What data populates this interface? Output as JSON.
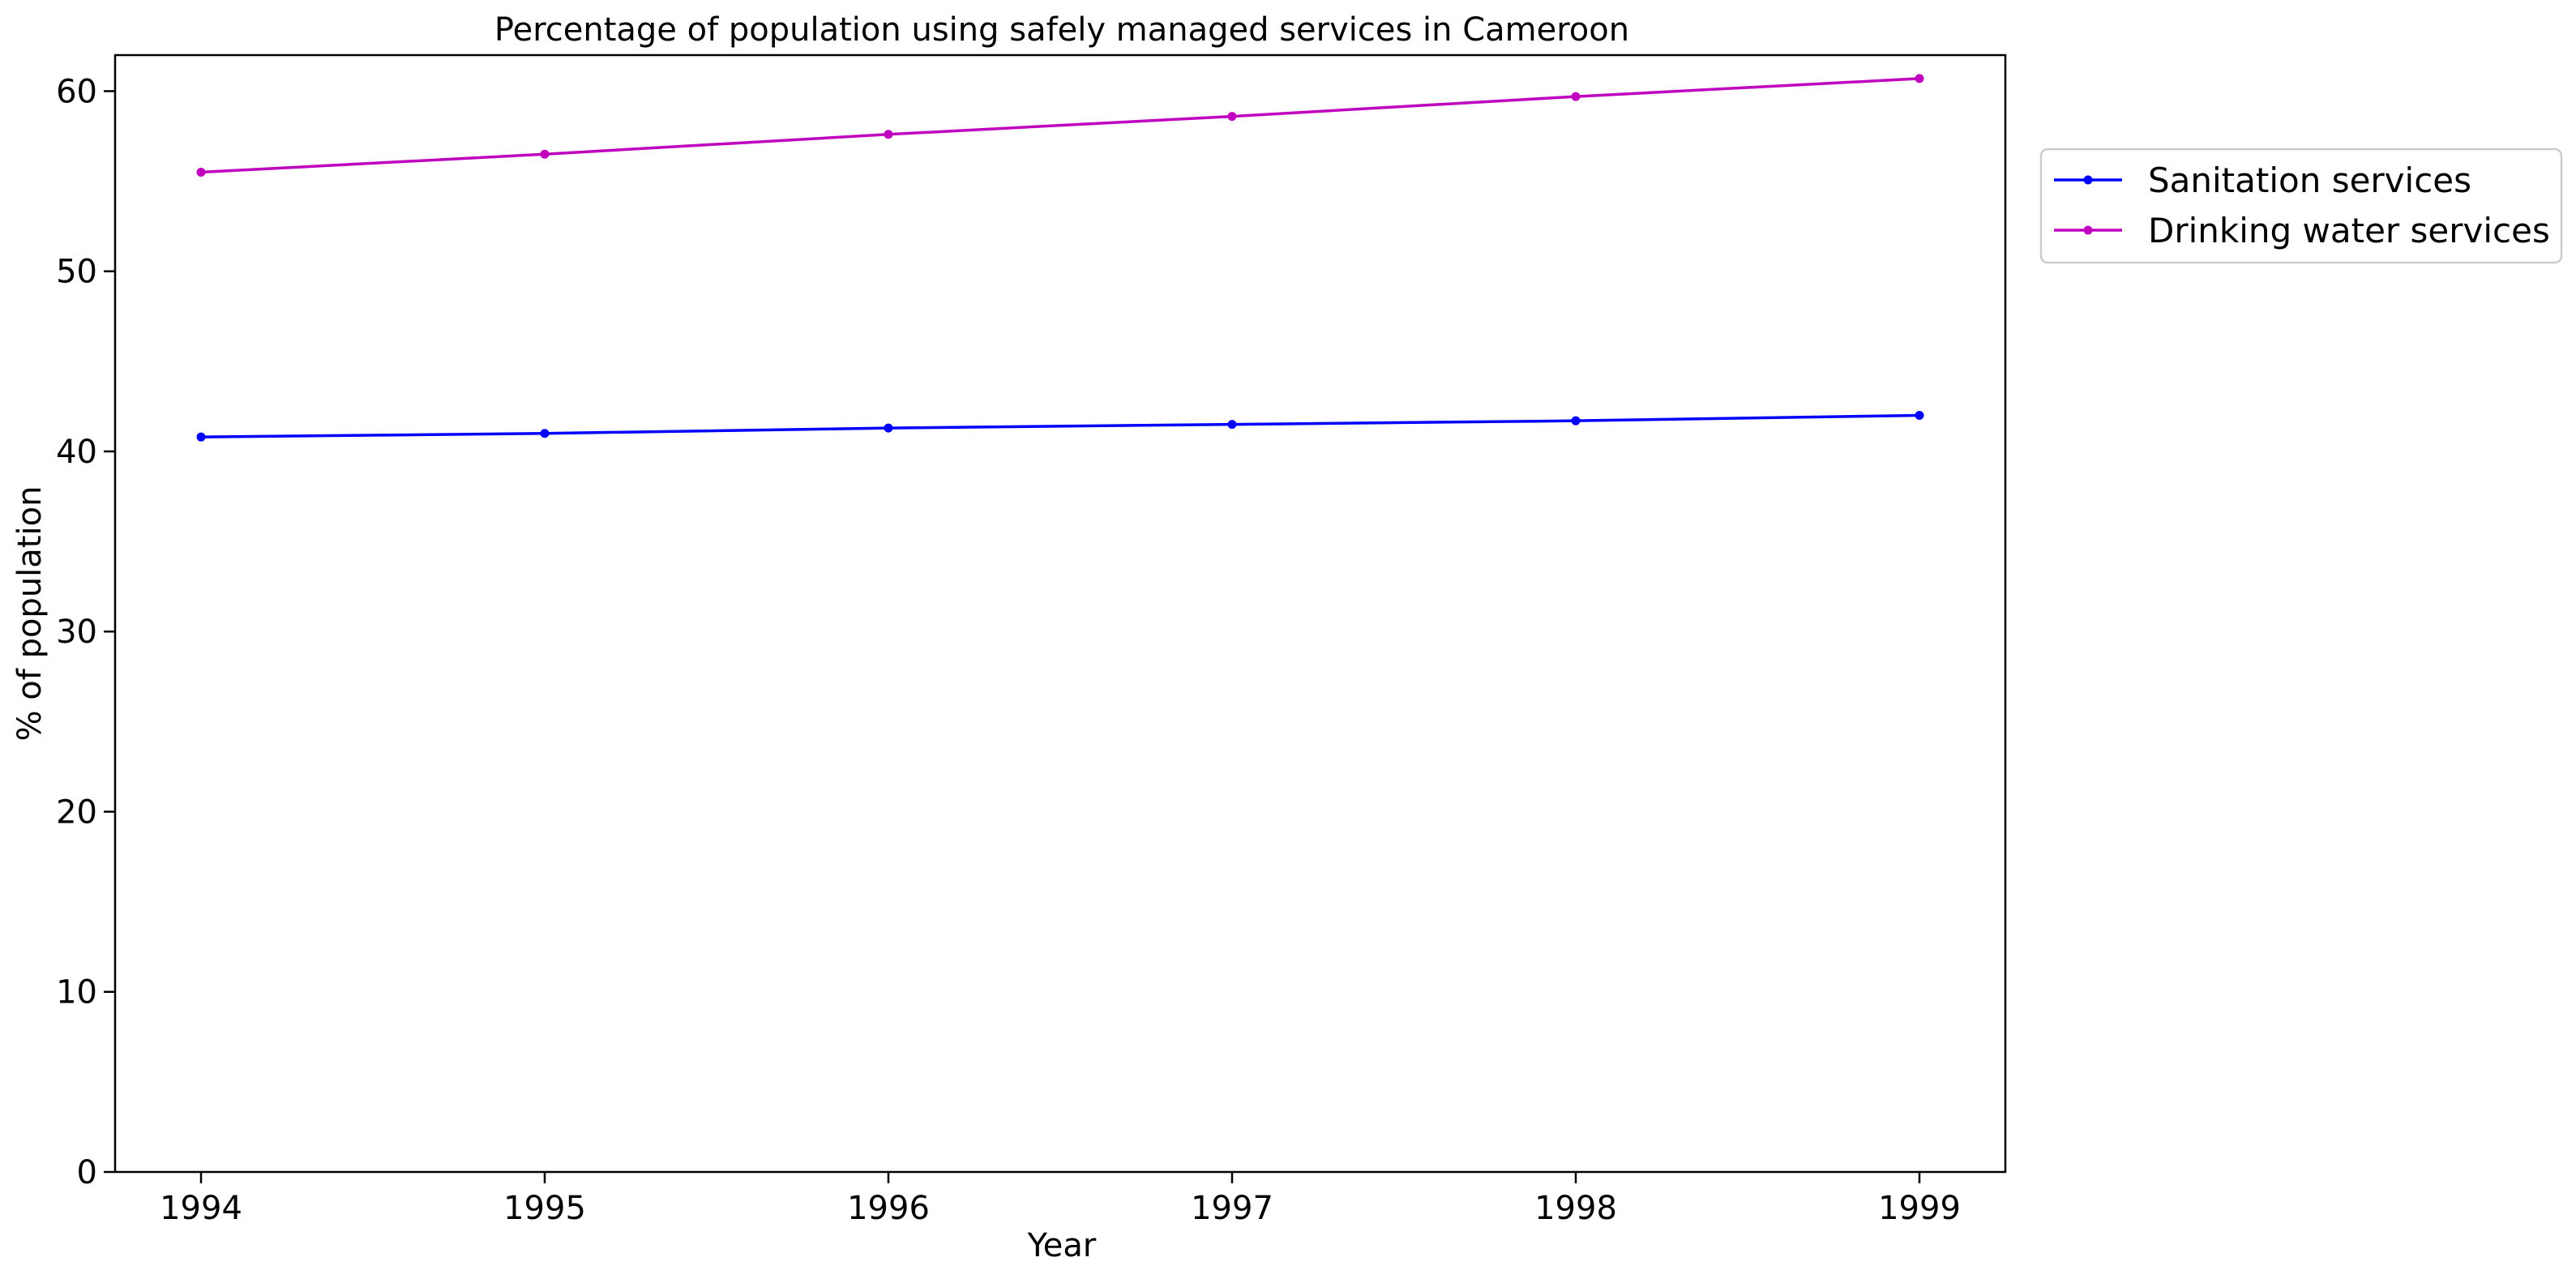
{
  "chart_data": {
    "type": "line",
    "title": "Percentage of population using safely managed services in Cameroon",
    "xlabel": "Year",
    "ylabel": "% of population",
    "x": [
      "1994",
      "1995",
      "1996",
      "1997",
      "1998",
      "1999"
    ],
    "ylim": [
      0,
      62
    ],
    "yticks": [
      "0",
      "10",
      "20",
      "30",
      "40",
      "50",
      "60"
    ],
    "grid": false,
    "legend_position": "outside-top-right",
    "series": [
      {
        "name": "Sanitation services",
        "color": "#0000ff",
        "values": [
          40.8,
          41.0,
          41.3,
          41.5,
          41.7,
          42.0
        ]
      },
      {
        "name": "Drinking water services",
        "color": "#bf00bf",
        "values": [
          55.5,
          56.5,
          57.6,
          58.6,
          59.7,
          60.7
        ]
      }
    ]
  }
}
